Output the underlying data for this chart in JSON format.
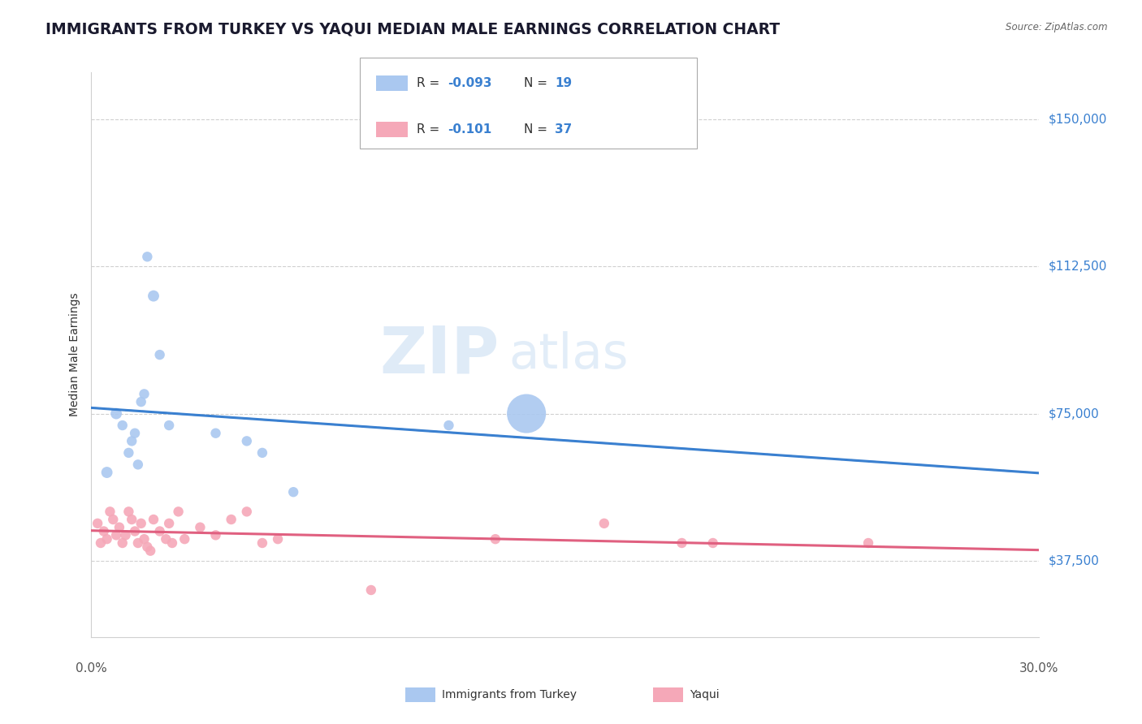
{
  "title": "IMMIGRANTS FROM TURKEY VS YAQUI MEDIAN MALE EARNINGS CORRELATION CHART",
  "source": "Source: ZipAtlas.com",
  "ylabel": "Median Male Earnings",
  "yticks": [
    37500,
    75000,
    112500,
    150000
  ],
  "ytick_labels": [
    "$37,500",
    "$75,000",
    "$112,500",
    "$150,000"
  ],
  "xlim": [
    0.0,
    0.305
  ],
  "ylim": [
    18000,
    162000
  ],
  "turkey_R": "-0.093",
  "turkey_N": "19",
  "yaqui_R": "-0.101",
  "yaqui_N": "37",
  "turkey_color": "#aac8f0",
  "turkey_line_color": "#3a80d0",
  "yaqui_color": "#f5a8b8",
  "yaqui_line_color": "#e06080",
  "turkey_x": [
    0.005,
    0.008,
    0.01,
    0.012,
    0.013,
    0.014,
    0.015,
    0.016,
    0.017,
    0.018,
    0.02,
    0.022,
    0.025,
    0.04,
    0.05,
    0.055,
    0.065,
    0.115,
    0.14
  ],
  "turkey_y": [
    60000,
    75000,
    72000,
    65000,
    68000,
    70000,
    62000,
    78000,
    80000,
    115000,
    105000,
    90000,
    72000,
    70000,
    68000,
    65000,
    55000,
    72000,
    75000
  ],
  "turkey_size": [
    100,
    100,
    80,
    80,
    80,
    80,
    80,
    80,
    80,
    80,
    100,
    80,
    80,
    80,
    80,
    80,
    80,
    80,
    1200
  ],
  "yaqui_x": [
    0.002,
    0.003,
    0.004,
    0.005,
    0.006,
    0.007,
    0.008,
    0.009,
    0.01,
    0.011,
    0.012,
    0.013,
    0.014,
    0.015,
    0.016,
    0.017,
    0.018,
    0.019,
    0.02,
    0.022,
    0.024,
    0.025,
    0.026,
    0.028,
    0.03,
    0.035,
    0.04,
    0.045,
    0.05,
    0.055,
    0.06,
    0.09,
    0.13,
    0.165,
    0.19,
    0.2,
    0.25
  ],
  "yaqui_y": [
    47000,
    42000,
    45000,
    43000,
    50000,
    48000,
    44000,
    46000,
    42000,
    44000,
    50000,
    48000,
    45000,
    42000,
    47000,
    43000,
    41000,
    40000,
    48000,
    45000,
    43000,
    47000,
    42000,
    50000,
    43000,
    46000,
    44000,
    48000,
    50000,
    42000,
    43000,
    30000,
    43000,
    47000,
    42000,
    42000,
    42000
  ],
  "yaqui_size": [
    80,
    80,
    80,
    80,
    80,
    80,
    80,
    80,
    80,
    80,
    80,
    80,
    80,
    80,
    80,
    80,
    80,
    80,
    80,
    80,
    80,
    80,
    80,
    80,
    80,
    80,
    80,
    80,
    80,
    80,
    80,
    80,
    80,
    80,
    80,
    80,
    80
  ],
  "bg_color": "#ffffff",
  "grid_color": "#d0d0d0",
  "title_color": "#1a1a2e",
  "title_fontsize": 13.5,
  "label_fontsize": 10,
  "tick_fontsize": 11,
  "legend_color": "#3a80d0"
}
